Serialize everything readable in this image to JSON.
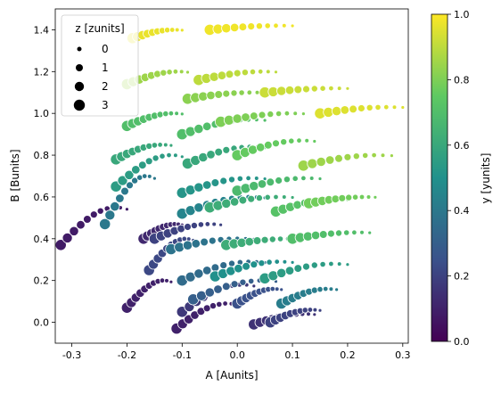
{
  "chart_data": {
    "type": "scatter",
    "xlabel": "A [Aunits]",
    "ylabel": "B [Bunits]",
    "xlim": [
      -0.33,
      0.31
    ],
    "ylim": [
      -0.1,
      1.5
    ],
    "xticks": [
      "-0.3",
      "-0.2",
      "-0.1",
      "0.0",
      "0.1",
      "0.2",
      "0.3"
    ],
    "yticks": [
      "0.0",
      "0.2",
      "0.4",
      "0.6",
      "0.8",
      "1.0",
      "1.2",
      "1.4"
    ],
    "hue": {
      "label": "y [yunits]",
      "range": [
        0.0,
        1.0
      ],
      "ticks": [
        "0.0",
        "0.2",
        "0.4",
        "0.6",
        "0.8",
        "1.0"
      ],
      "colormap": "viridis"
    },
    "size": {
      "title": "z [zunits]",
      "levels": [
        "0",
        "1",
        "2",
        "3"
      ]
    },
    "legend_placement": "upper-left",
    "colors": [
      "#440154",
      "#3b528b",
      "#21918c",
      "#5ec962",
      "#fde725"
    ],
    "arcs": [
      {
        "x0": -0.32,
        "x1": -0.2,
        "y0": 0.37,
        "y1": 0.55,
        "c": 0.08
      },
      {
        "x0": -0.2,
        "x1": -0.12,
        "y0": 0.07,
        "y1": 0.2,
        "c": 0.1
      },
      {
        "x0": -0.17,
        "x1": -0.1,
        "y0": 0.4,
        "y1": 0.47,
        "c": 0.12
      },
      {
        "x0": -0.16,
        "x1": -0.08,
        "y0": 0.25,
        "y1": 0.4,
        "c": 0.22
      },
      {
        "x0": -0.15,
        "x1": -0.03,
        "y0": 0.4,
        "y1": 0.47,
        "c": 0.2
      },
      {
        "x0": -0.24,
        "x1": -0.15,
        "y0": 0.47,
        "y1": 0.7,
        "c": 0.4
      },
      {
        "x0": -0.22,
        "x1": -0.1,
        "y0": 0.65,
        "y1": 0.8,
        "c": 0.55
      },
      {
        "x0": -0.22,
        "x1": -0.12,
        "y0": 0.78,
        "y1": 0.85,
        "c": 0.6
      },
      {
        "x0": -0.2,
        "x1": -0.1,
        "y0": 0.94,
        "y1": 1.0,
        "c": 0.7
      },
      {
        "x0": -0.2,
        "x1": -0.09,
        "y0": 1.14,
        "y1": 1.2,
        "c": 0.85
      },
      {
        "x0": -0.19,
        "x1": -0.1,
        "y0": 1.36,
        "y1": 1.4,
        "c": 0.97
      },
      {
        "x0": -0.11,
        "x1": 0.0,
        "y0": -0.03,
        "y1": 0.09,
        "c": 0.1
      },
      {
        "x0": -0.1,
        "x1": 0.03,
        "y0": 0.05,
        "y1": 0.18,
        "c": 0.17
      },
      {
        "x0": -0.08,
        "x1": 0.07,
        "y0": 0.11,
        "y1": 0.2,
        "c": 0.3
      },
      {
        "x0": -0.1,
        "x1": 0.05,
        "y0": 0.2,
        "y1": 0.29,
        "c": 0.35
      },
      {
        "x0": -0.12,
        "x1": 0.03,
        "y0": 0.35,
        "y1": 0.4,
        "c": 0.38
      },
      {
        "x0": -0.1,
        "x1": 0.05,
        "y0": 0.52,
        "y1": 0.6,
        "c": 0.45
      },
      {
        "x0": -0.1,
        "x1": 0.05,
        "y0": 0.62,
        "y1": 0.69,
        "c": 0.52
      },
      {
        "x0": -0.09,
        "x1": 0.05,
        "y0": 0.76,
        "y1": 0.84,
        "c": 0.6
      },
      {
        "x0": -0.1,
        "x1": 0.05,
        "y0": 0.9,
        "y1": 0.97,
        "c": 0.7
      },
      {
        "x0": -0.09,
        "x1": 0.05,
        "y0": 1.07,
        "y1": 1.1,
        "c": 0.82
      },
      {
        "x0": -0.07,
        "x1": 0.07,
        "y0": 1.16,
        "y1": 1.2,
        "c": 0.9
      },
      {
        "x0": -0.05,
        "x1": 0.1,
        "y0": 1.4,
        "y1": 1.42,
        "c": 0.98
      },
      {
        "x0": 0.0,
        "x1": 0.08,
        "y0": 0.09,
        "y1": 0.16,
        "c": 0.25
      },
      {
        "x0": -0.04,
        "x1": 0.1,
        "y0": 0.22,
        "y1": 0.29,
        "c": 0.5
      },
      {
        "x0": -0.02,
        "x1": 0.12,
        "y0": 0.37,
        "y1": 0.4,
        "c": 0.62
      },
      {
        "x0": -0.05,
        "x1": 0.1,
        "y0": 0.55,
        "y1": 0.6,
        "c": 0.62
      },
      {
        "x0": 0.0,
        "x1": 0.15,
        "y0": 0.63,
        "y1": 0.69,
        "c": 0.68
      },
      {
        "x0": 0.0,
        "x1": 0.14,
        "y0": 0.8,
        "y1": 0.87,
        "c": 0.76
      },
      {
        "x0": -0.03,
        "x1": 0.12,
        "y0": 0.96,
        "y1": 1.0,
        "c": 0.8
      },
      {
        "x0": 0.05,
        "x1": 0.2,
        "y0": 1.1,
        "y1": 1.12,
        "c": 0.92
      },
      {
        "x0": 0.03,
        "x1": 0.14,
        "y0": -0.01,
        "y1": 0.04,
        "c": 0.15
      },
      {
        "x0": 0.06,
        "x1": 0.15,
        "y0": 0.0,
        "y1": 0.06,
        "c": 0.2
      },
      {
        "x0": 0.08,
        "x1": 0.18,
        "y0": 0.09,
        "y1": 0.16,
        "c": 0.42
      },
      {
        "x0": 0.05,
        "x1": 0.2,
        "y0": 0.21,
        "y1": 0.28,
        "c": 0.55
      },
      {
        "x0": 0.1,
        "x1": 0.24,
        "y0": 0.4,
        "y1": 0.43,
        "c": 0.7
      },
      {
        "x0": 0.07,
        "x1": 0.2,
        "y0": 0.53,
        "y1": 0.59,
        "c": 0.72
      },
      {
        "x0": 0.13,
        "x1": 0.25,
        "y0": 0.57,
        "y1": 0.6,
        "c": 0.78
      },
      {
        "x0": 0.12,
        "x1": 0.28,
        "y0": 0.75,
        "y1": 0.8,
        "c": 0.85
      },
      {
        "x0": 0.15,
        "x1": 0.3,
        "y0": 1.0,
        "y1": 1.03,
        "c": 0.95
      }
    ]
  }
}
